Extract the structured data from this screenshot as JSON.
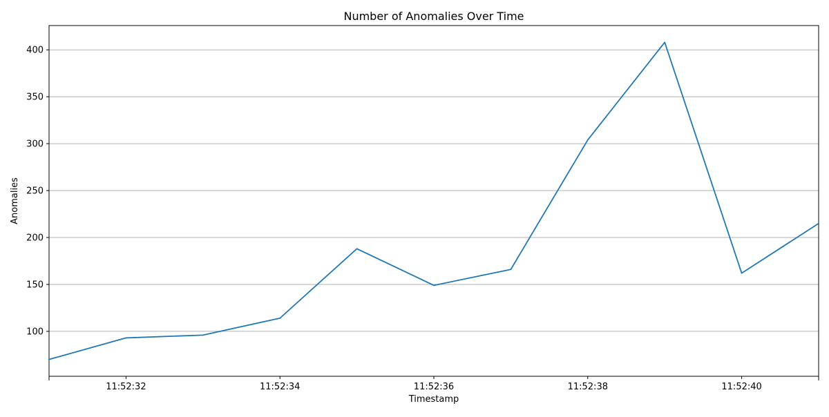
{
  "chart_data": {
    "type": "line",
    "title": "Number of Anomalies Over Time",
    "xlabel": "Timestamp",
    "ylabel": "Anomalies",
    "x": [
      "11:52:31",
      "11:52:32",
      "11:52:33",
      "11:52:34",
      "11:52:35",
      "11:52:36",
      "11:52:37",
      "11:52:38",
      "11:52:39",
      "11:52:40",
      "11:52:41"
    ],
    "series": [
      {
        "values": [
          70,
          93,
          96,
          114,
          188,
          149,
          166,
          304,
          408,
          162,
          215
        ]
      }
    ],
    "x_tick_labels": [
      "11:52:32",
      "11:52:34",
      "11:52:36",
      "11:52:38",
      "11:52:40"
    ],
    "y_ticks": [
      100,
      150,
      200,
      250,
      300,
      350,
      400
    ],
    "ylim": [
      52.1,
      425.9
    ],
    "grid": "horizontal",
    "line_color": "#1f77b4",
    "grid_color": "#b0b0b0"
  }
}
